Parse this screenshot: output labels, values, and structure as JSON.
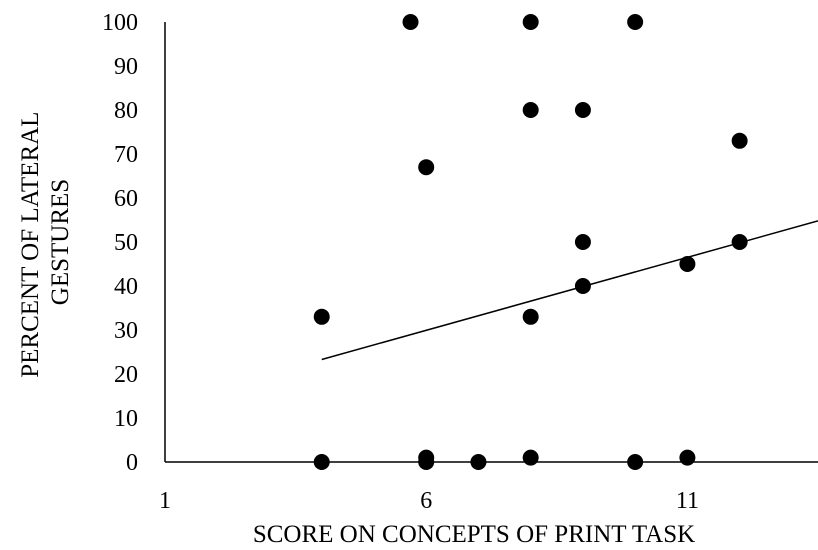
{
  "chart_data": {
    "type": "scatter",
    "title": "",
    "xlabel": "SCORE ON CONCEPTS OF PRINT TASK",
    "ylabel_lines": [
      "PERCENT OF LATERAL",
      "GESTURES"
    ],
    "xlim": [
      1,
      13.5
    ],
    "ylim": [
      0,
      100
    ],
    "x_ticks": [
      1,
      6,
      11
    ],
    "y_ticks": [
      0,
      10,
      20,
      30,
      40,
      50,
      60,
      70,
      80,
      90,
      100
    ],
    "grid": false,
    "legend": "none",
    "marker_color": "#000000",
    "points": [
      {
        "x": 4,
        "y": 33
      },
      {
        "x": 4,
        "y": 0
      },
      {
        "x": 5.7,
        "y": 100
      },
      {
        "x": 6,
        "y": 67
      },
      {
        "x": 6,
        "y": 1
      },
      {
        "x": 6,
        "y": 0
      },
      {
        "x": 7,
        "y": 0
      },
      {
        "x": 8,
        "y": 100
      },
      {
        "x": 8,
        "y": 80
      },
      {
        "x": 8,
        "y": 33
      },
      {
        "x": 8,
        "y": 1
      },
      {
        "x": 9,
        "y": 80
      },
      {
        "x": 9,
        "y": 50
      },
      {
        "x": 9,
        "y": 40
      },
      {
        "x": 10,
        "y": 100
      },
      {
        "x": 10,
        "y": 0
      },
      {
        "x": 11,
        "y": 45
      },
      {
        "x": 11,
        "y": 1
      },
      {
        "x": 12,
        "y": 73
      },
      {
        "x": 12,
        "y": 50
      }
    ],
    "trendline": {
      "x": [
        4,
        13.5
      ],
      "y": [
        23.3,
        54.8
      ]
    }
  }
}
